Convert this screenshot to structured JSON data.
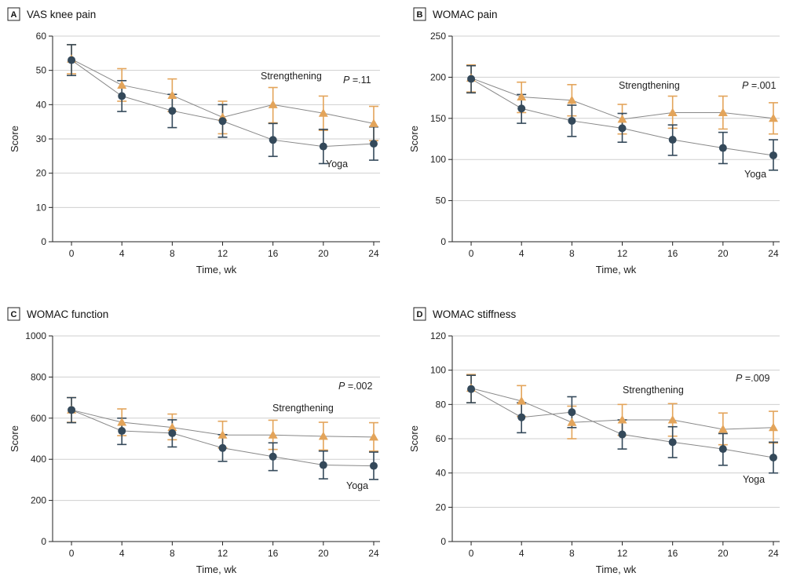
{
  "chart_data": [
    {
      "type": "line",
      "panel_letter": "A",
      "title": "VAS knee pain",
      "xlabel": "Time, wk",
      "ylabel": "Score",
      "x": [
        0,
        4,
        8,
        12,
        16,
        20,
        24
      ],
      "xlim": [
        -1.5,
        24.5
      ],
      "ylim": [
        0,
        60
      ],
      "yticks": [
        0,
        10,
        20,
        30,
        40,
        50,
        60
      ],
      "ytick_labels": [
        "0",
        "10",
        "20",
        "30",
        "40",
        "50",
        "60"
      ],
      "xtick_labels": [
        "0",
        "4",
        "8",
        "12",
        "16",
        "20",
        "24"
      ],
      "p_value": ".11",
      "grid": "horizontal",
      "series": [
        {
          "name": "Strengthening",
          "marker": "triangle",
          "color": "#E3A45A",
          "values": [
            53.3,
            45.7,
            42.7,
            36.3,
            40.0,
            37.5,
            34.5
          ],
          "err_low": [
            49.0,
            41.0,
            38.0,
            31.5,
            34.7,
            32.5,
            29.5
          ],
          "err_high": [
            57.5,
            50.5,
            47.5,
            41.0,
            45.0,
            42.5,
            39.5
          ]
        },
        {
          "name": "Yoga",
          "marker": "circle",
          "color": "#34495A",
          "values": [
            53.0,
            42.5,
            38.2,
            35.2,
            29.7,
            27.8,
            28.6
          ],
          "err_low": [
            48.5,
            38.0,
            33.3,
            30.5,
            24.9,
            22.8,
            23.8
          ],
          "err_high": [
            57.5,
            47.0,
            43.0,
            40.0,
            34.5,
            32.8,
            33.5
          ]
        }
      ]
    },
    {
      "type": "line",
      "panel_letter": "B",
      "title": "WOMAC pain",
      "xlabel": "Time, wk",
      "ylabel": "Score",
      "x": [
        0,
        4,
        8,
        12,
        16,
        20,
        24
      ],
      "xlim": [
        -1.5,
        24.5
      ],
      "ylim": [
        0,
        250
      ],
      "yticks": [
        0,
        50,
        100,
        150,
        200,
        250
      ],
      "ytick_labels": [
        "0",
        "50",
        "100",
        "150",
        "200",
        "250"
      ],
      "xtick_labels": [
        "0",
        "4",
        "8",
        "12",
        "16",
        "20",
        "24"
      ],
      "p_value": ".001",
      "grid": "horizontal",
      "series": [
        {
          "name": "Strengthening",
          "marker": "triangle",
          "color": "#E3A45A",
          "values": [
            199,
            176,
            172,
            149,
            157,
            157,
            150
          ],
          "err_low": [
            182,
            157,
            153,
            131,
            138,
            137,
            131
          ],
          "err_high": [
            215,
            194,
            191,
            167,
            177,
            177,
            169
          ]
        },
        {
          "name": "Yoga",
          "marker": "circle",
          "color": "#34495A",
          "values": [
            198,
            162,
            147,
            138,
            124,
            114,
            105
          ],
          "err_low": [
            181,
            144,
            128,
            121,
            105,
            95,
            87
          ],
          "err_high": [
            214,
            179,
            166,
            156,
            142,
            133,
            124
          ]
        }
      ]
    },
    {
      "type": "line",
      "panel_letter": "C",
      "title": "WOMAC function",
      "xlabel": "Time, wk",
      "ylabel": "Score",
      "x": [
        0,
        4,
        8,
        12,
        16,
        20,
        24
      ],
      "xlim": [
        -1.5,
        24.5
      ],
      "ylim": [
        0,
        1000
      ],
      "yticks": [
        0,
        200,
        400,
        600,
        800,
        1000
      ],
      "ytick_labels": [
        "0",
        "200",
        "400",
        "600",
        "800",
        "1000"
      ],
      "xtick_labels": [
        "0",
        "4",
        "8",
        "12",
        "16",
        "20",
        "24"
      ],
      "p_value": ".002",
      "grid": "horizontal",
      "series": [
        {
          "name": "Strengthening",
          "marker": "triangle",
          "color": "#E3A45A",
          "values": [
            640,
            580,
            555,
            518,
            518,
            512,
            508
          ],
          "err_low": [
            580,
            515,
            495,
            455,
            448,
            445,
            440
          ],
          "err_high": [
            700,
            645,
            620,
            585,
            590,
            580,
            578
          ]
        },
        {
          "name": "Yoga",
          "marker": "circle",
          "color": "#34495A",
          "values": [
            640,
            538,
            527,
            455,
            413,
            372,
            368
          ],
          "err_low": [
            578,
            472,
            460,
            390,
            345,
            305,
            302
          ],
          "err_high": [
            700,
            600,
            592,
            520,
            480,
            440,
            435
          ]
        }
      ]
    },
    {
      "type": "line",
      "panel_letter": "D",
      "title": "WOMAC stiffness",
      "xlabel": "Time, wk",
      "ylabel": "Score",
      "x": [
        0,
        4,
        8,
        12,
        16,
        20,
        24
      ],
      "xlim": [
        -1.5,
        24.5
      ],
      "ylim": [
        0,
        120
      ],
      "yticks": [
        0,
        20,
        40,
        60,
        80,
        100,
        120
      ],
      "ytick_labels": [
        "0",
        "20",
        "40",
        "60",
        "80",
        "100",
        "120"
      ],
      "xtick_labels": [
        "0",
        "4",
        "8",
        "12",
        "16",
        "20",
        "24"
      ],
      "p_value": ".009",
      "grid": "horizontal",
      "series": [
        {
          "name": "Strengthening",
          "marker": "triangle",
          "color": "#E3A45A",
          "values": [
            89.5,
            82.0,
            69.5,
            71.0,
            71.0,
            65.5,
            66.5
          ],
          "err_low": [
            81.0,
            73.0,
            60.0,
            62.0,
            61.5,
            56.5,
            57.5
          ],
          "err_high": [
            97.5,
            91.0,
            79.0,
            80.0,
            80.5,
            75.0,
            76.0
          ]
        },
        {
          "name": "Yoga",
          "marker": "circle",
          "color": "#34495A",
          "values": [
            89.0,
            72.5,
            75.5,
            62.5,
            58.0,
            54.0,
            49.0
          ],
          "err_low": [
            81.0,
            63.5,
            66.5,
            54.0,
            49.0,
            44.5,
            40.0
          ],
          "err_high": [
            97.0,
            81.0,
            84.5,
            71.0,
            67.0,
            63.0,
            58.0
          ]
        }
      ]
    }
  ],
  "labels": {
    "p_prefix": "P",
    "p_sep": " ="
  },
  "colors": {
    "grid": "#cfcfcf",
    "axis": "#222222",
    "connector": "#888888"
  }
}
